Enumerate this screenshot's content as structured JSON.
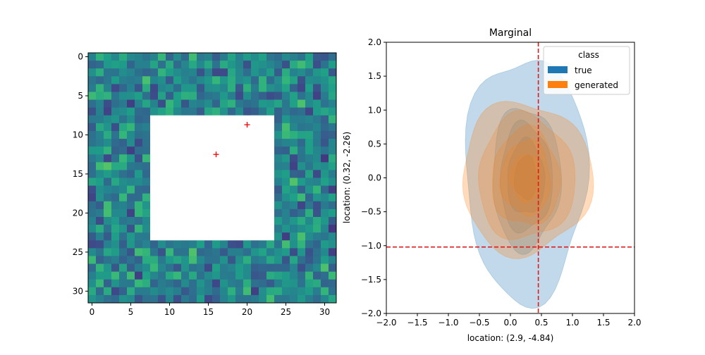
{
  "chart_data": [
    {
      "type": "heatmap",
      "title": "",
      "xlabel": "",
      "ylabel": "",
      "grid_size": [
        32,
        32
      ],
      "colormap": "viridis",
      "xlim": [
        -0.5,
        31.5
      ],
      "ylim": [
        31.5,
        -0.5
      ],
      "xticks": [
        0,
        5,
        10,
        15,
        20,
        25,
        30
      ],
      "yticks": [
        0,
        5,
        10,
        15,
        20,
        25,
        30
      ],
      "masked_region": {
        "rows": [
          8,
          23
        ],
        "cols": [
          8,
          23
        ],
        "fill": "#ffffff"
      },
      "markers": [
        {
          "x": 20,
          "y": 8.7,
          "symbol": "+",
          "color": "#ff0000"
        },
        {
          "x": 16,
          "y": 12.5,
          "symbol": "+",
          "color": "#ff0000"
        }
      ]
    },
    {
      "type": "kde_contour",
      "title": "Marginal",
      "xlabel": "location: (2.9, -4.84)",
      "ylabel": "location: (0.32, -2.26)",
      "xlim": [
        -2.0,
        2.0
      ],
      "ylim": [
        -2.0,
        2.0
      ],
      "xticks": [
        "−2.0",
        "−1.5",
        "−1.0",
        "−0.5",
        "0.0",
        "0.5",
        "1.0",
        "1.5",
        "2.0"
      ],
      "yticks": [
        "−2.0",
        "−1.5",
        "−1.0",
        "−0.5",
        "0.0",
        "0.5",
        "1.0",
        "1.5",
        "2.0"
      ],
      "legend": {
        "title": "class",
        "placement": "top-right",
        "entries": [
          {
            "label": "true",
            "color": "#1f77b4"
          },
          {
            "label": "generated",
            "color": "#ff7f0e"
          }
        ]
      },
      "reference_lines": {
        "x": 0.45,
        "y": -1.02,
        "color": "#e31a1c",
        "style": "dashed"
      },
      "series": [
        {
          "name": "true",
          "color": "#1f77b4",
          "center": [
            0.25,
            0.0
          ],
          "levels": [
            {
              "rx": 0.98,
              "ry": 1.8
            },
            {
              "rx": 0.55,
              "ry": 1.05
            },
            {
              "rx": 0.42,
              "ry": 0.8
            },
            {
              "rx": 0.3,
              "ry": 0.55
            },
            {
              "rx": 0.18,
              "ry": 0.32
            }
          ]
        },
        {
          "name": "generated",
          "color": "#ff7f0e",
          "center": [
            0.25,
            0.0
          ],
          "levels": [
            {
              "rx": 1.05,
              "ry": 1.12
            },
            {
              "rx": 0.78,
              "ry": 0.92
            },
            {
              "rx": 0.55,
              "ry": 0.72
            },
            {
              "rx": 0.4,
              "ry": 0.55
            },
            {
              "rx": 0.25,
              "ry": 0.35
            }
          ]
        }
      ]
    }
  ]
}
